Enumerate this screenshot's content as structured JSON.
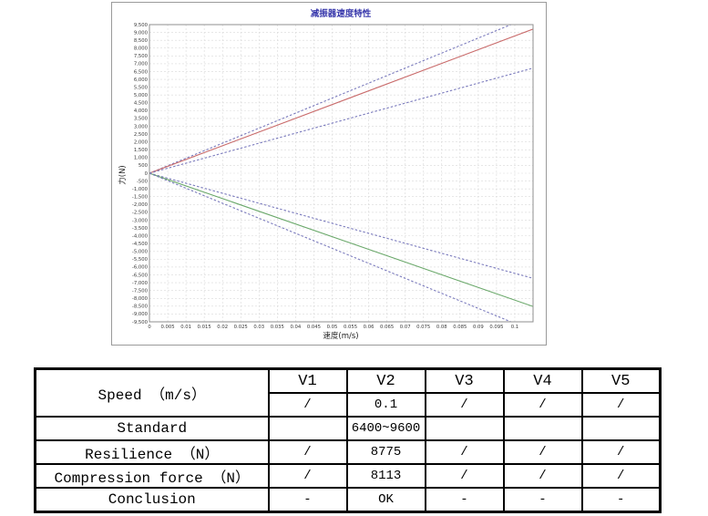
{
  "chart_data": {
    "type": "line",
    "title": "减振器速度特性",
    "xlabel": "速度(m/s)",
    "ylabel": "力(N)",
    "xlim": [
      0,
      0.105
    ],
    "ylim": [
      -9500,
      9500
    ],
    "y_tick_step": 500,
    "x_ticks": [
      0,
      0.005,
      0.01,
      0.015,
      0.02,
      0.025,
      0.03,
      0.035,
      0.04,
      0.045,
      0.05,
      0.055,
      0.06,
      0.065,
      0.07,
      0.075,
      0.08,
      0.085,
      0.09,
      0.095,
      0.1
    ],
    "x_tick_labels": [
      "0",
      "0.005",
      "0.01",
      "0.015",
      "0.02",
      "0.025",
      "0.03",
      "0.035",
      "0.04",
      "0.045",
      "0.05",
      "0.055",
      "0.06",
      "0.065",
      "0.07",
      "0.075",
      "0.08",
      "0.085",
      "0.09",
      "0.095",
      "0.1"
    ],
    "grid": true,
    "legend": false,
    "colors": {
      "grid": "#d9d9d9",
      "frame": "#8f8f8f",
      "title": "#3939ac",
      "bound": "#7b7bbd",
      "rebound": "#c96a6a",
      "compression": "#6aa86a"
    },
    "series": [
      {
        "name": "rebound-upper-limit",
        "style": "dashed",
        "color": "#7b7bbd",
        "points": [
          [
            0,
            0
          ],
          [
            0.1,
            9600
          ]
        ]
      },
      {
        "name": "rebound-measured",
        "style": "solid",
        "color": "#c96a6a",
        "points": [
          [
            0,
            0
          ],
          [
            0.1,
            8775
          ]
        ]
      },
      {
        "name": "rebound-lower-limit",
        "style": "dashed",
        "color": "#7b7bbd",
        "points": [
          [
            0,
            0
          ],
          [
            0.1,
            6400
          ]
        ]
      },
      {
        "name": "compression-lower-limit",
        "style": "dashed",
        "color": "#7b7bbd",
        "points": [
          [
            0,
            0
          ],
          [
            0.1,
            -6400
          ]
        ]
      },
      {
        "name": "compression-measured",
        "style": "solid",
        "color": "#6aa86a",
        "points": [
          [
            0,
            0
          ],
          [
            0.1,
            -8113
          ]
        ]
      },
      {
        "name": "compression-upper-limit",
        "style": "dashed",
        "color": "#7b7bbd",
        "points": [
          [
            0,
            0
          ],
          [
            0.1,
            -9600
          ]
        ]
      }
    ]
  },
  "table": {
    "speed_label": "Speed （m/s）",
    "columns": [
      "V1",
      "V2",
      "V3",
      "V4",
      "V5"
    ],
    "speed_values": [
      "/",
      "0.1",
      "/",
      "/",
      "/"
    ],
    "rows": [
      {
        "label": "Standard",
        "values": [
          "",
          "6400~9600",
          "",
          "",
          ""
        ]
      },
      {
        "label": "Resilience （N）",
        "values": [
          "/",
          "8775",
          "/",
          "/",
          "/"
        ]
      },
      {
        "label": "Compression force （N）",
        "values": [
          "/",
          "8113",
          "/",
          "/",
          "/"
        ]
      },
      {
        "label": "Conclusion",
        "values": [
          "-",
          "OK",
          "-",
          "-",
          "-"
        ]
      }
    ]
  }
}
